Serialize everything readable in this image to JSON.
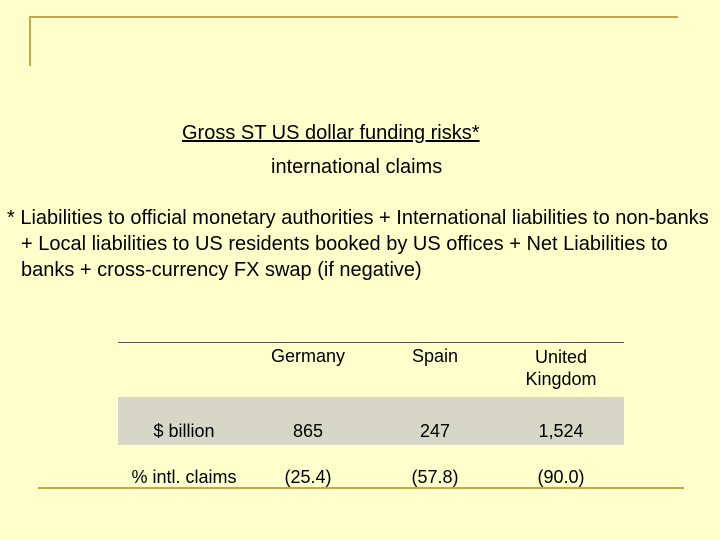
{
  "title": {
    "line1": "Gross ST US dollar funding risks*",
    "line2": "international claims"
  },
  "footnote": "* Liabilities to official monetary authorities + International liabilities to non-banks + Local liabilities to US residents booked by US offices + Net Liabilities to banks  + cross-currency FX swap (if negative)",
  "table": {
    "columns": [
      "Germany",
      "Spain",
      "United Kingdom"
    ],
    "rows": [
      {
        "label": "$ billion",
        "values": [
          "865",
          "247",
          "1,524"
        ]
      },
      {
        "label": "% intl. claims",
        "values": [
          "(25.4)",
          "(57.8)",
          "(90.0)"
        ]
      }
    ]
  },
  "colors": {
    "background": "#ffffcc",
    "frame_line": "#c8a646",
    "row_shade": "#d7d7c8"
  }
}
